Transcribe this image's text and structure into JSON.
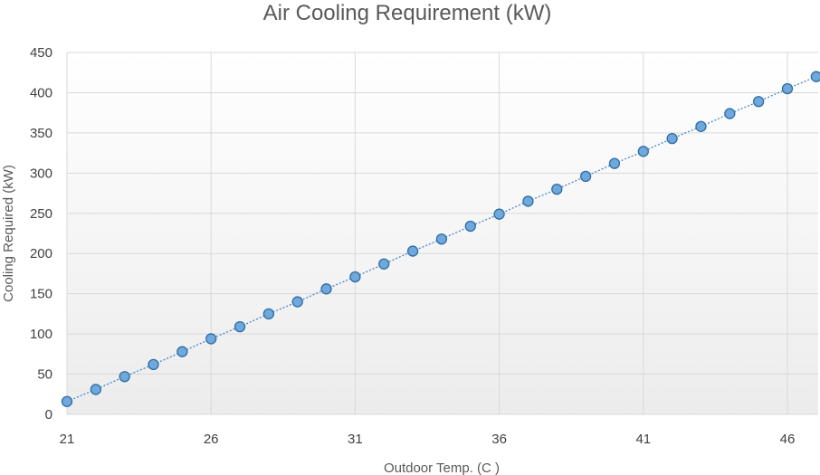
{
  "chart_data": {
    "type": "scatter",
    "title": "Air Cooling Requirement (kW)",
    "xlabel": "Outdoor Temp. (C )",
    "ylabel": "Cooling Required (kW)",
    "xlim": [
      21,
      47
    ],
    "ylim": [
      0,
      450
    ],
    "x_ticks": [
      21,
      26,
      31,
      36,
      41,
      46
    ],
    "y_ticks": [
      0,
      50,
      100,
      150,
      200,
      250,
      300,
      350,
      400,
      450
    ],
    "grid": true,
    "legend": "none",
    "series": [
      {
        "x": [
          21,
          22,
          23,
          24,
          25,
          26,
          27,
          28,
          29,
          30,
          31,
          32,
          33,
          34,
          35,
          36,
          37,
          38,
          39,
          40,
          41,
          42,
          43,
          44,
          45,
          46,
          47
        ],
        "y": [
          16,
          31,
          47,
          62,
          78,
          94,
          109,
          125,
          140,
          156,
          171,
          187,
          203,
          218,
          234,
          249,
          265,
          280,
          296,
          312,
          327,
          343,
          358,
          374,
          389,
          405,
          420
        ]
      }
    ],
    "colors": {
      "point_fill": "#6fa8dc",
      "point_stroke": "#2e6da4",
      "line": "#4a86c5",
      "grid": "#d9d9d9"
    }
  }
}
